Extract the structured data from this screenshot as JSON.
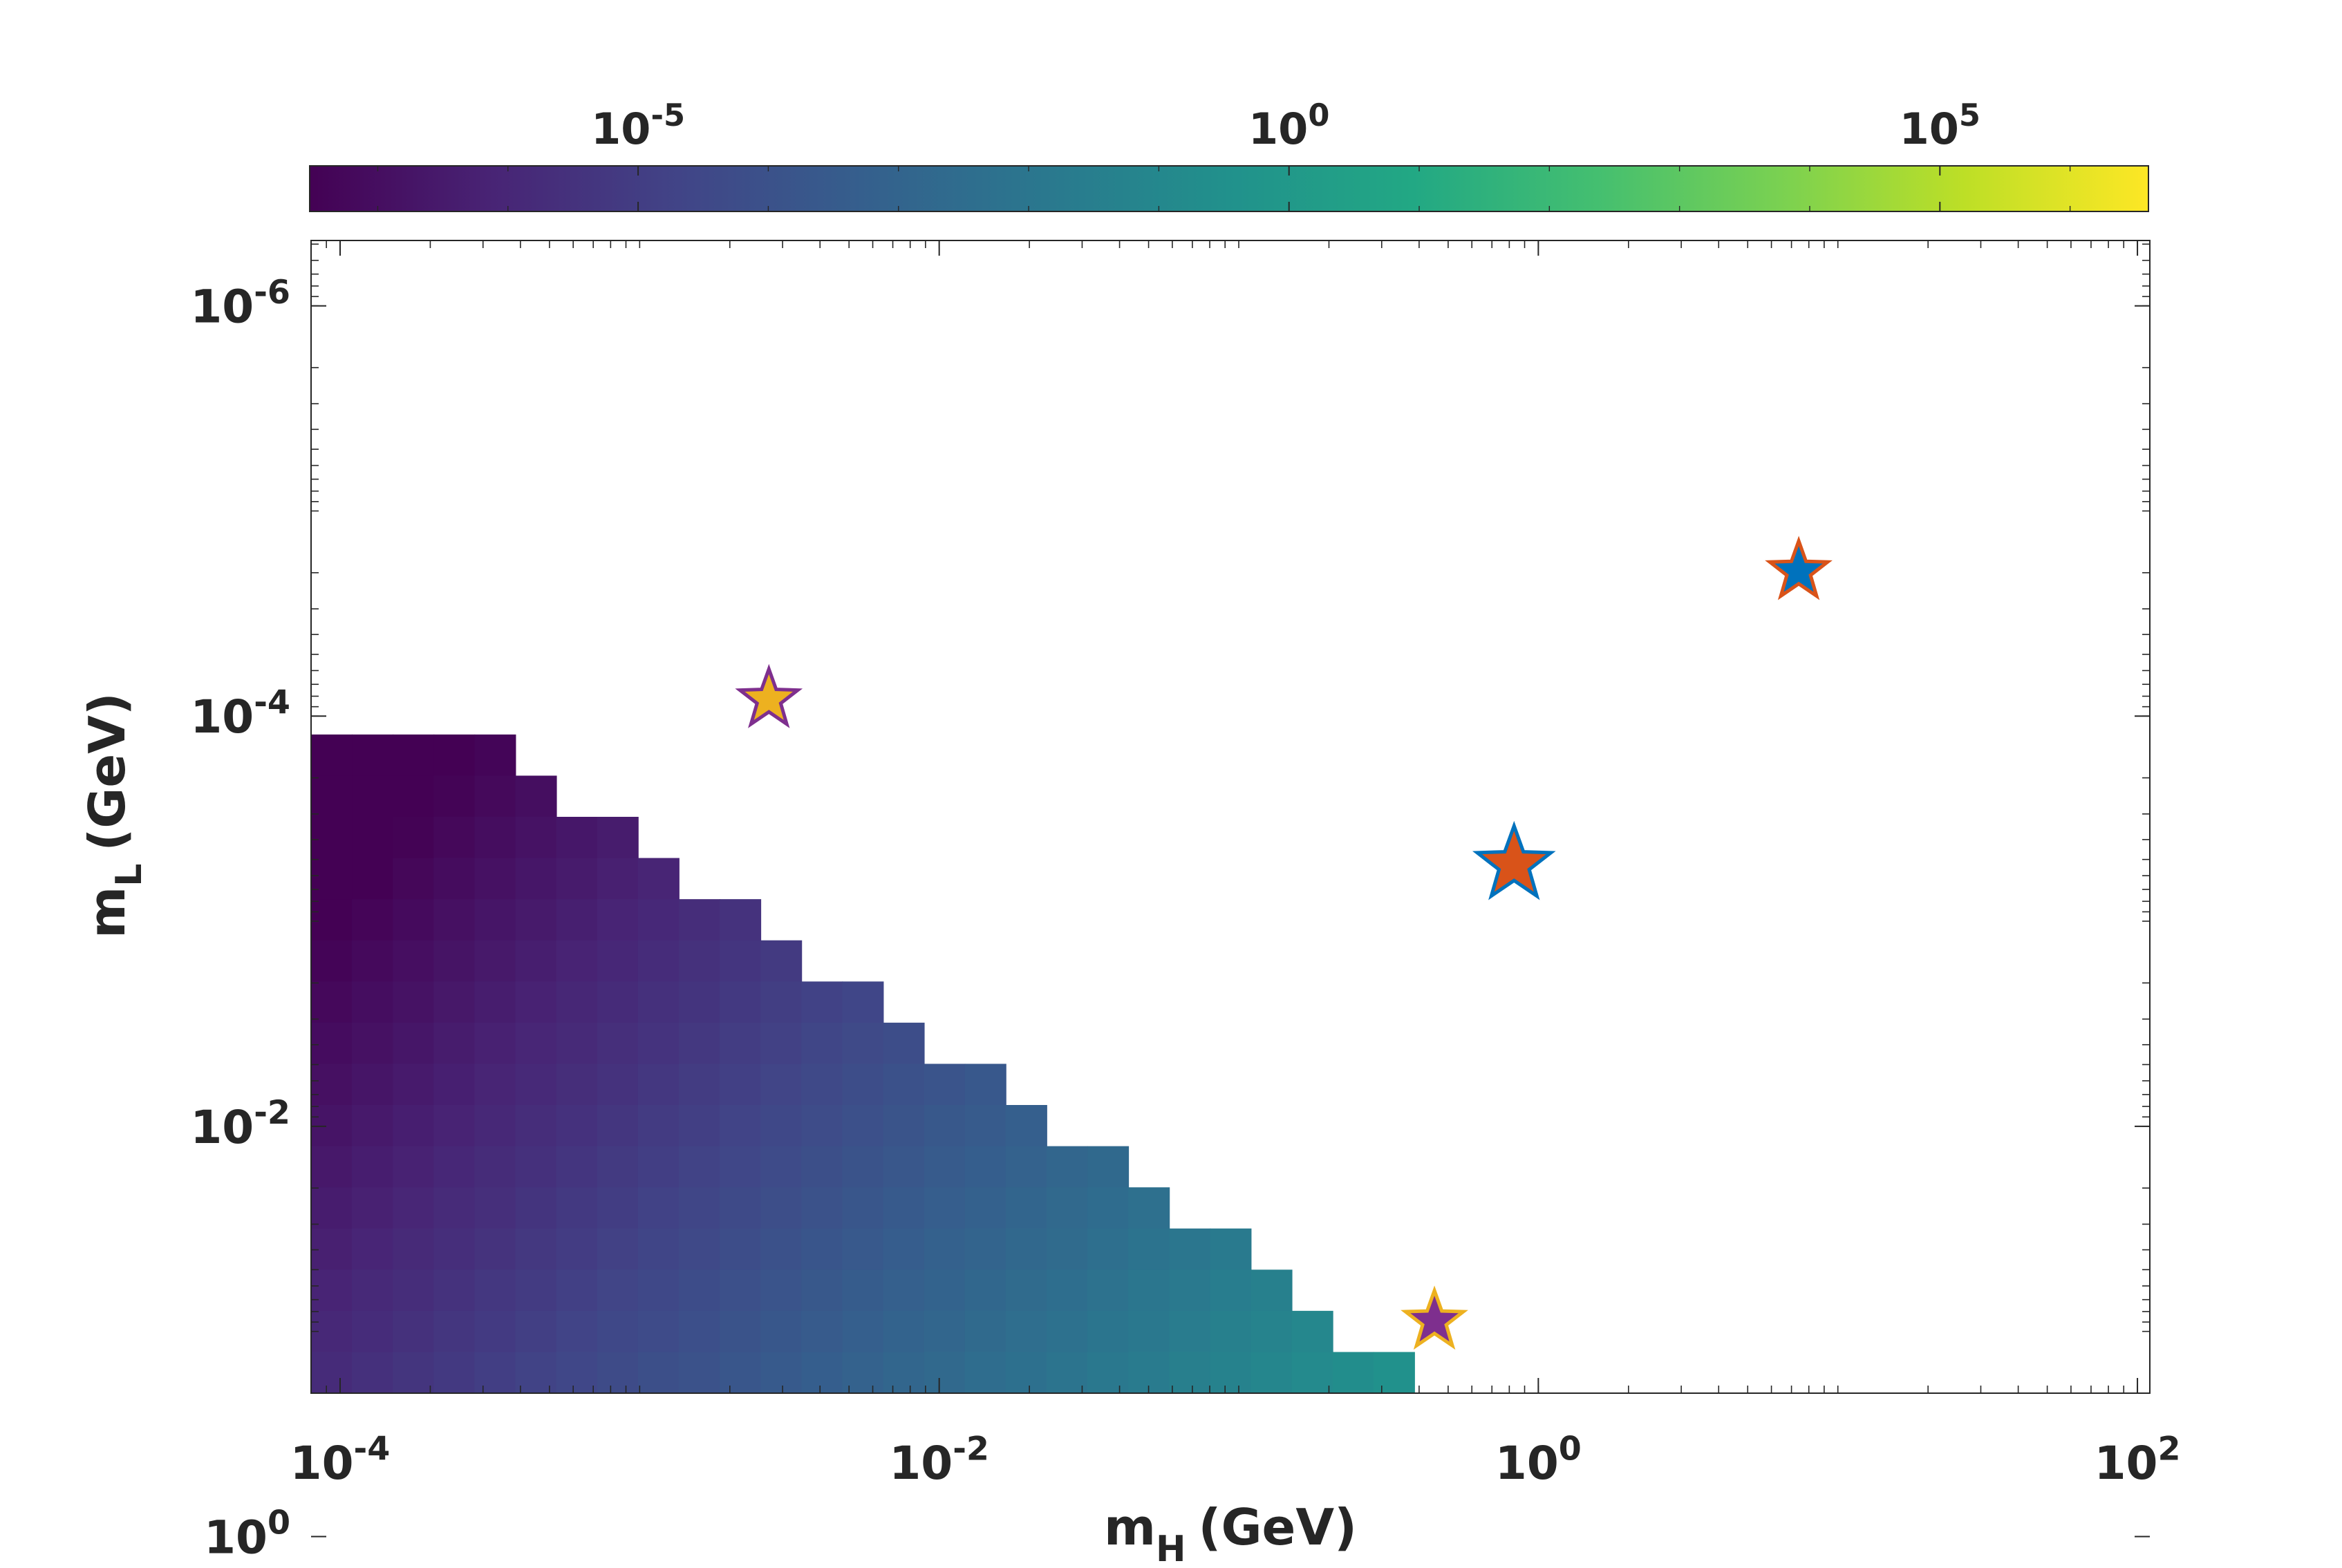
{
  "chart_data": {
    "type": "heatmap",
    "title": "",
    "xlabel": {
      "main": "m",
      "sub": "H",
      "unit": "(GeV)"
    },
    "ylabel": {
      "main": "m",
      "sub": "L",
      "unit": "(GeV)"
    },
    "x_scale": "log",
    "y_scale": "log",
    "y_direction": "reversed",
    "xlim": [
      8e-05,
      110
    ],
    "ylim": [
      4.8e-07,
      0.2
    ],
    "x_ticks": [
      {
        "value": 0.0001,
        "base": "10",
        "exp": "-4"
      },
      {
        "value": 0.01,
        "base": "10",
        "exp": "-2"
      },
      {
        "value": 1,
        "base": "10",
        "exp": "0"
      },
      {
        "value": 100,
        "base": "10",
        "exp": "2"
      }
    ],
    "y_ticks": [
      {
        "value": 1e-06,
        "base": "10",
        "exp": "-6"
      },
      {
        "value": 0.0001,
        "base": "10",
        "exp": "-4"
      },
      {
        "value": 0.01,
        "base": "10",
        "exp": "-2"
      },
      {
        "value": 1,
        "base": "10",
        "exp": "0"
      }
    ],
    "grid": false,
    "region": "m_L above boundary m_L = m_H / 2.4 (m_L >= 1e-4 GeV); blank below",
    "value_model": "log10(value) ≈ 0.9 + 1.5·log10(m_H) + 0.8·log10(m_L)",
    "colorbar": {
      "position": "top",
      "colormap": "viridis",
      "scale": "log",
      "range": [
        3e-08,
        4000000.0
      ],
      "ticks": [
        {
          "value": 1e-05,
          "base": "10",
          "exp": "-5"
        },
        {
          "value": 1,
          "base": "10",
          "exp": "0"
        },
        {
          "value": 100000.0,
          "base": "10",
          "exp": "5"
        }
      ]
    },
    "markers": [
      {
        "shape": "star",
        "m_H": 0.0027,
        "m_L": 8.3e-05,
        "fill": "#EDB120",
        "edge": "#7E2F8E"
      },
      {
        "shape": "star",
        "m_H": 0.83,
        "m_L": 0.00053,
        "fill": "#D95319",
        "edge": "#0072BD"
      },
      {
        "shape": "star",
        "m_H": 7.4,
        "m_L": 1.97e-05,
        "fill": "#0072BD",
        "edge": "#D95319"
      },
      {
        "shape": "star",
        "m_H": 0.45,
        "m_L": 0.089,
        "fill": "#7E2F8E",
        "edge": "#EDB120"
      }
    ]
  }
}
